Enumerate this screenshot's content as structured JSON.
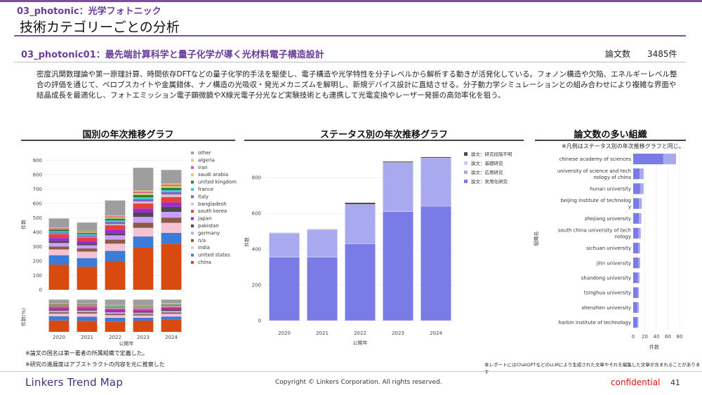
{
  "header": {
    "section_label": "03_photonic：光学フォトニック",
    "page_title": "技術カテゴリーごとの分析"
  },
  "topic": {
    "title": "03_photonic01：最先端計算科学と量子化学が導く光材料電子構造設計",
    "count_label": "論文数",
    "count_value": "3485件",
    "description": "密度汎関数理論や第一原理計算、時間依存DFTなどの量子化学的手法を駆使し、電子構造や光学特性を分子レベルから解析する動きが活発化している。フォノン構造や欠陥、エネルギーレベル整合の評価を通じて、ペロブスカイトや金属錯体、ナノ構造の光吸収・発光メカニズムを解明し、新規デバイス設計に直結させる。分子動力学シミュレーションとの組み合わせにより複雑な界面や結晶成長を最適化し、フォトエミッション電子顕微鏡やX線光電子分光など実験技術とも連携して光電変換やレーザー発振の高効率化を狙う。"
  },
  "panels": {
    "country_title": "国別の年次推移グラフ",
    "status_title": "ステータス別の年次推移グラフ",
    "org_title": "論文数の多い組織",
    "org_note": "※凡例はステータス別の年次推移グラフと同じ。"
  },
  "notes": {
    "country_note_1": "※論文の国名は第一著者の所属組織で定義した。",
    "country_note_2": "※研究の進展度はアブストラクトの内容を元に推察した",
    "disclaimer": "本レポートにはChatGPTなどのLLMにより生成された文章やそれを編集した文章が含まれることがあります"
  },
  "footer": {
    "brand": "Linkers Trend Map",
    "copyright": "Copyright © Linkers Corporation. All rights reserved.",
    "confidential": "confidential",
    "page": "41"
  },
  "colors": {
    "accent": "#6a3d9a",
    "status": [
      "#4a4a4a",
      "#c9c9f5",
      "#a9a9ef",
      "#7b7be6"
    ],
    "country": [
      "#9e9e9e",
      "#f2c46f",
      "#d65a8f",
      "#c8d95a",
      "#2e7d32",
      "#42c6d8",
      "#8a5cc4",
      "#d4c5c5",
      "#e8403a",
      "#9c2ad4",
      "#4a4a4a",
      "#c9a0f5",
      "#8b5a4a",
      "#f4c2d0",
      "#3d7bd8",
      "#d84a10"
    ]
  },
  "chart_data": [
    {
      "type": "bar",
      "stacked": true,
      "title": "国別の年次推移グラフ",
      "categories": [
        "2020",
        "2021",
        "2022",
        "2023",
        "2024"
      ],
      "xlabel": "公開年",
      "ylabel": "件数",
      "ylabel_pct": "件数(%)",
      "ylim": [
        0,
        950
      ],
      "yticks": [
        0,
        100,
        200,
        300,
        400,
        500,
        600,
        700,
        800,
        900
      ],
      "legend": "right",
      "series": [
        {
          "name": "other",
          "values": [
            63,
            58,
            105,
            158,
            94
          ]
        },
        {
          "name": "algeria",
          "values": [
            3,
            3,
            5,
            8,
            8
          ]
        },
        {
          "name": "iran",
          "values": [
            5,
            6,
            8,
            10,
            10
          ]
        },
        {
          "name": "saudi arabia",
          "values": [
            5,
            5,
            8,
            12,
            12
          ]
        },
        {
          "name": "united kingdom",
          "values": [
            12,
            8,
            12,
            16,
            16
          ]
        },
        {
          "name": "france",
          "values": [
            10,
            10,
            12,
            14,
            14
          ]
        },
        {
          "name": "italy",
          "values": [
            10,
            10,
            14,
            16,
            16
          ]
        },
        {
          "name": "bangladesh",
          "values": [
            2,
            3,
            8,
            14,
            18
          ]
        },
        {
          "name": "south korea",
          "values": [
            25,
            25,
            30,
            35,
            38
          ]
        },
        {
          "name": "japan",
          "values": [
            20,
            20,
            25,
            28,
            30
          ]
        },
        {
          "name": "pakistan",
          "values": [
            15,
            10,
            15,
            30,
            35
          ]
        },
        {
          "name": "germany",
          "values": [
            25,
            22,
            30,
            40,
            40
          ]
        },
        {
          "name": "n/a",
          "values": [
            20,
            22,
            28,
            36,
            36
          ]
        },
        {
          "name": "india",
          "values": [
            40,
            45,
            50,
            60,
            70
          ]
        },
        {
          "name": "united states",
          "values": [
            65,
            60,
            70,
            75,
            75
          ]
        },
        {
          "name": "china",
          "values": [
            175,
            160,
            200,
            295,
            320
          ]
        }
      ]
    },
    {
      "type": "bar",
      "stacked": true,
      "title": "ステータス別の年次推移グラフ",
      "categories": [
        "2020",
        "2021",
        "2022",
        "2023",
        "2024"
      ],
      "xlabel": "公開年",
      "ylabel": "件数",
      "ylim": [
        0,
        950
      ],
      "yticks": [
        0,
        200,
        400,
        600,
        800
      ],
      "legend": "top-left",
      "series": [
        {
          "name": "論文：実用化研究",
          "values": [
            355,
            355,
            430,
            610,
            640
          ]
        },
        {
          "name": "論文：応用研究",
          "values": [
            135,
            155,
            220,
            275,
            270
          ]
        },
        {
          "name": "論文：基礎研究",
          "values": [
            0,
            0,
            0,
            0,
            0
          ]
        },
        {
          "name": "論文：研究段階不明",
          "values": [
            2,
            2,
            10,
            6,
            6
          ]
        }
      ]
    },
    {
      "type": "bar",
      "orientation": "horizontal",
      "title": "論文数の多い組織",
      "xlabel": "件数",
      "ylabel": "組織名",
      "xlim": [
        0,
        80
      ],
      "xticks": [
        0,
        20,
        40,
        60,
        80
      ],
      "categories": [
        "chinese academy of sciences",
        "university of science and technology of china",
        "hunan university",
        "beijing institute of technology",
        "zhejiang university",
        "south china university of technology",
        "sichuan university",
        "jilin university",
        "shandong university",
        "tsinghua university",
        "shenzhen university",
        "harbin institute of technology"
      ],
      "labels_wrapped": [
        [
          "chinese academy of sciences"
        ],
        [
          "university of science and tech",
          "nology of china"
        ],
        [
          "hunan university"
        ],
        [
          "beijing institute of technolog",
          "y"
        ],
        [
          "zhejiang university"
        ],
        [
          "south china university of tech",
          "nology"
        ],
        [
          "sichuan university"
        ],
        [
          "jilin university"
        ],
        [
          "shandong university"
        ],
        [
          "tsinghua university"
        ],
        [
          "shenzhen university"
        ],
        [
          "harbin institute of technology"
        ]
      ],
      "series": [
        {
          "name": "論文：実用化研究",
          "values": [
            52,
            11,
            12,
            10,
            10,
            9,
            9,
            9,
            8,
            8,
            7,
            7
          ]
        },
        {
          "name": "論文：応用研究",
          "values": [
            22,
            7,
            6,
            5,
            4,
            4,
            3,
            3,
            3,
            2,
            3,
            2
          ]
        }
      ]
    }
  ]
}
